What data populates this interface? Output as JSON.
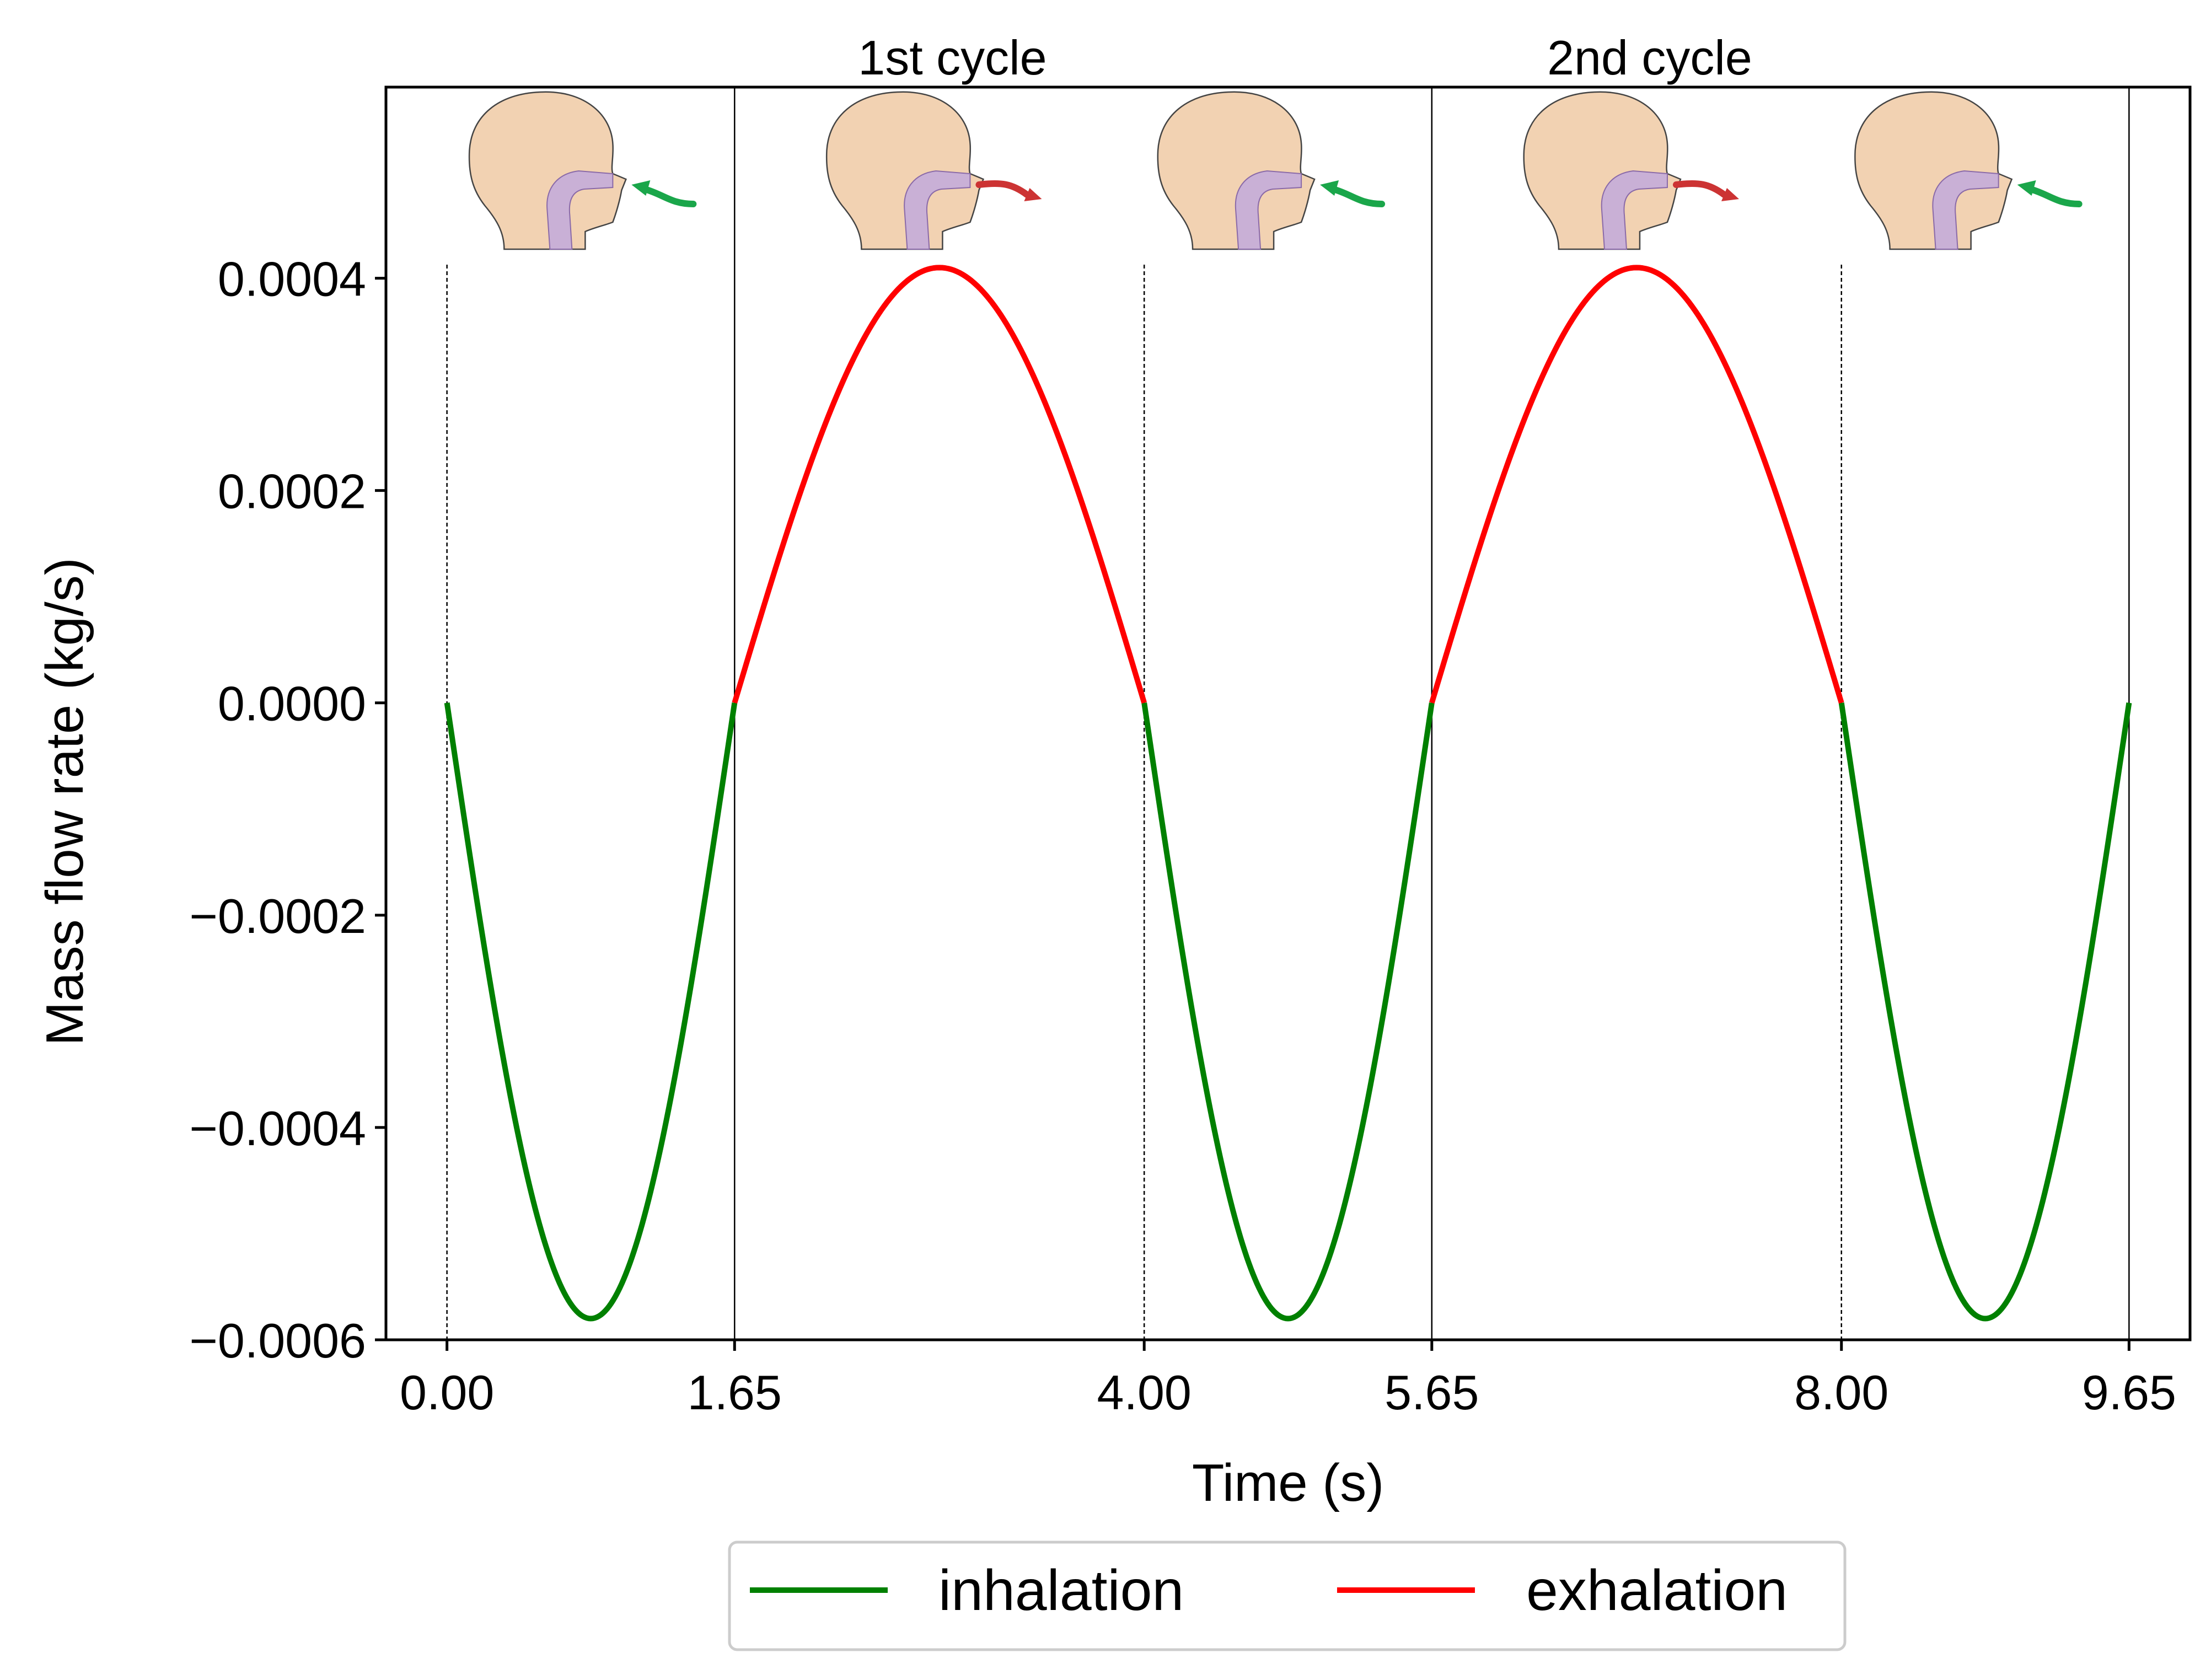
{
  "chart_data": {
    "type": "line",
    "title": "",
    "xlabel": "Time (s)",
    "ylabel": "Mass flow rate (kg/s)",
    "xlim": [
      -0.35,
      10.0
    ],
    "ylim": [
      -0.0006,
      0.00058
    ],
    "x_ticks": [
      0.0,
      1.65,
      4.0,
      5.65,
      8.0,
      9.65
    ],
    "x_tick_labels": [
      "0.00",
      "1.65",
      "4.00",
      "5.65",
      "8.00",
      "9.65"
    ],
    "y_ticks": [
      0.0004,
      0.0002,
      0.0,
      -0.0002,
      -0.0004,
      -0.0006
    ],
    "y_tick_labels": [
      "0.0004",
      "0.0002",
      "0.0000",
      "−0.0002",
      "−0.0004",
      "−0.0006"
    ],
    "grid": false,
    "cycle_labels": [
      {
        "text": "1st cycle",
        "x": 2.9
      },
      {
        "text": "2nd cycle",
        "x": 6.9
      }
    ],
    "boundaries": [
      {
        "x": 0.0,
        "style": "dashed"
      },
      {
        "x": 1.65,
        "style": "solid"
      },
      {
        "x": 4.0,
        "style": "dashed"
      },
      {
        "x": 5.65,
        "style": "solid"
      },
      {
        "x": 8.0,
        "style": "dashed"
      },
      {
        "x": 9.65,
        "style": "solid"
      }
    ],
    "series": [
      {
        "name": "inhalation",
        "color": "#008000",
        "peak": -0.00058,
        "segments": [
          [
            0.0,
            1.65
          ],
          [
            4.0,
            5.65
          ],
          [
            8.0,
            9.65
          ]
        ]
      },
      {
        "name": "exhalation",
        "color": "#ff0000",
        "peak": 0.00041,
        "segments": [
          [
            1.65,
            4.0
          ],
          [
            5.65,
            8.0
          ]
        ]
      }
    ],
    "phase_illustrations": [
      {
        "x": 0.85,
        "phase": "inhalation",
        "arrow_color": "#1aa64a"
      },
      {
        "x": 2.9,
        "phase": "exhalation",
        "arrow_color": "#cc3333"
      },
      {
        "x": 4.8,
        "phase": "inhalation",
        "arrow_color": "#1aa64a"
      },
      {
        "x": 6.9,
        "phase": "exhalation",
        "arrow_color": "#cc3333"
      },
      {
        "x": 8.8,
        "phase": "inhalation",
        "arrow_color": "#1aa64a"
      }
    ],
    "legend": {
      "position": "bottom-center",
      "entries": [
        {
          "label": "inhalation",
          "color": "#008000"
        },
        {
          "label": "exhalation",
          "color": "#ff0000"
        }
      ]
    }
  }
}
